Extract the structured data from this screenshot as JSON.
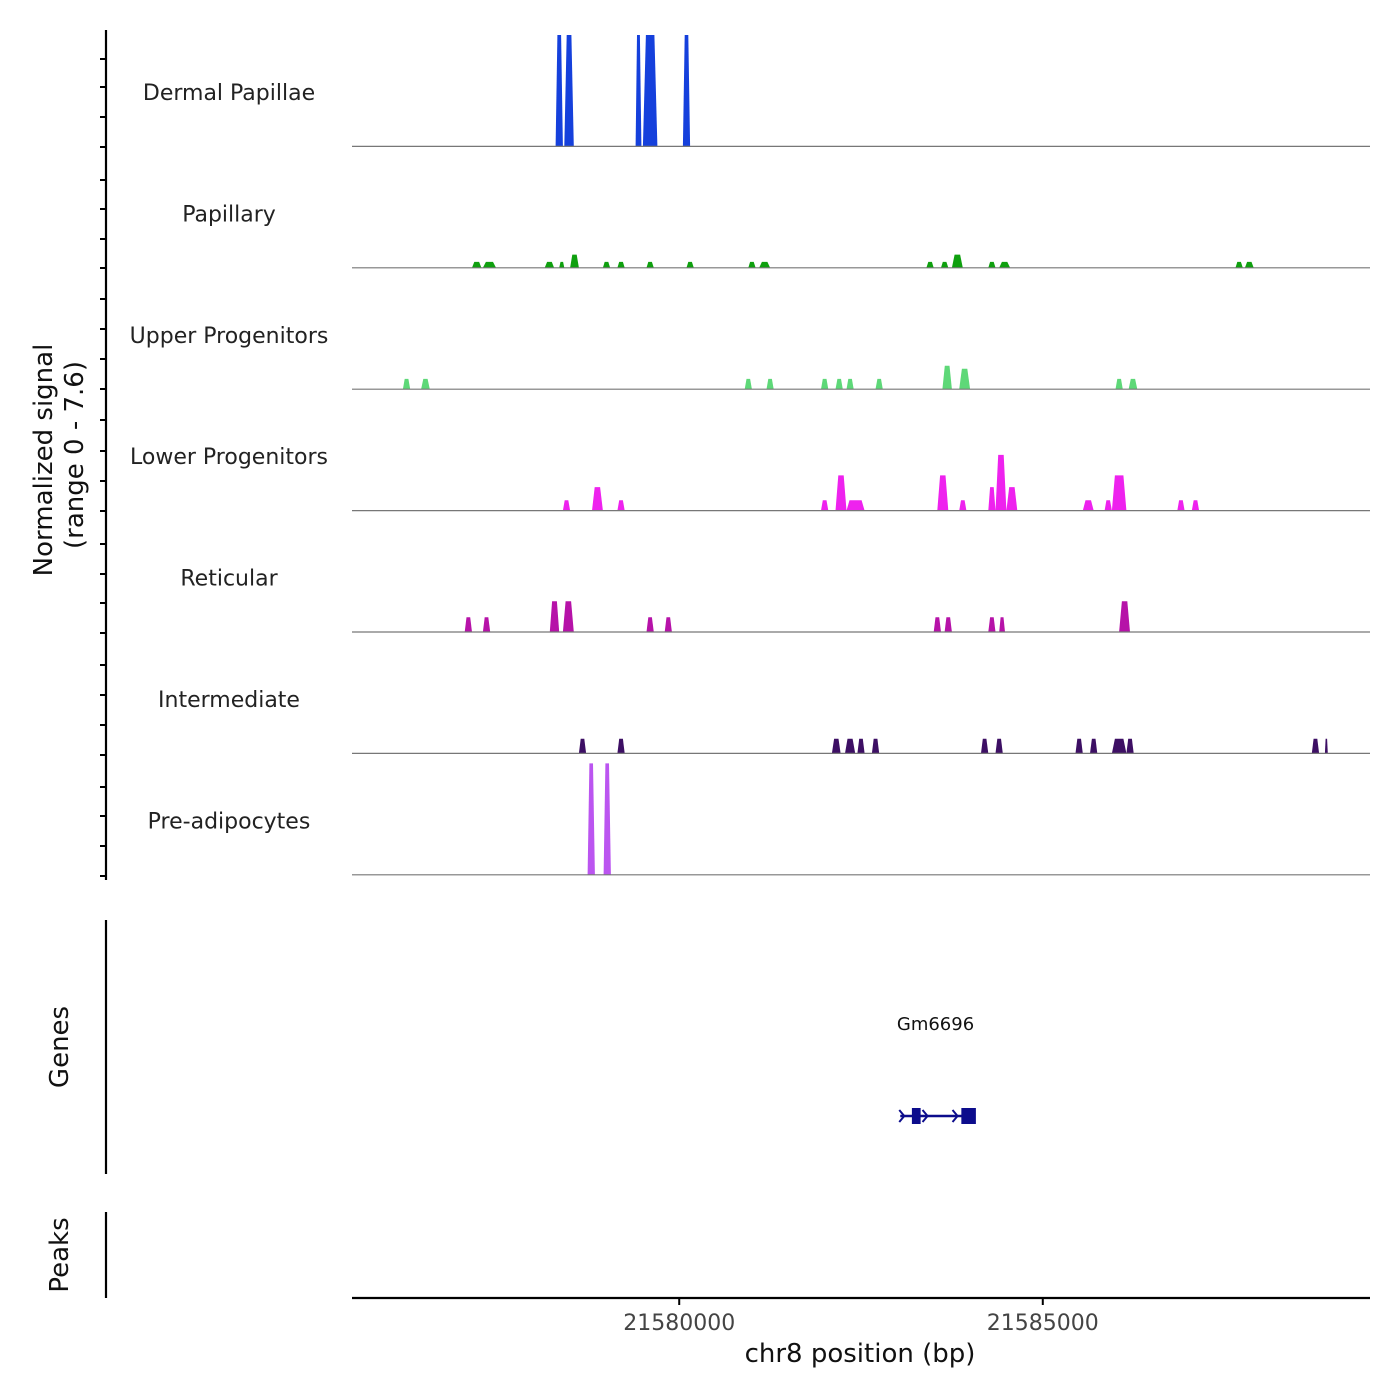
{
  "chart_data": {
    "type": "area",
    "title": "",
    "ylabel": "Normalized signal",
    "ylabel_range": "(range 0 - 7.6)",
    "ylim": [
      0,
      7.6
    ],
    "xlabel": "chr8 position (bp)",
    "xlim": [
      21575500,
      21589500
    ],
    "xticks": [
      21580000,
      21585000
    ],
    "xtick_labels": [
      "21580000",
      "21585000"
    ],
    "tracks": [
      {
        "name": "Dermal Papillae",
        "color": "#1540dc",
        "peaks": [
          {
            "start": 21578300,
            "end": 21578400,
            "height": 7.6
          },
          {
            "start": 21578420,
            "end": 21578550,
            "height": 7.6
          },
          {
            "start": 21579400,
            "end": 21579480,
            "height": 7.6
          },
          {
            "start": 21579500,
            "end": 21579700,
            "height": 7.6
          },
          {
            "start": 21580050,
            "end": 21580150,
            "height": 7.6
          }
        ]
      },
      {
        "name": "Papillary",
        "color": "#0fa00f",
        "peaks": [
          {
            "start": 21577150,
            "end": 21577280,
            "height": 0.4
          },
          {
            "start": 21577300,
            "end": 21577480,
            "height": 0.4
          },
          {
            "start": 21578150,
            "end": 21578280,
            "height": 0.4
          },
          {
            "start": 21578350,
            "end": 21578420,
            "height": 0.4
          },
          {
            "start": 21578500,
            "end": 21578620,
            "height": 0.9
          },
          {
            "start": 21578950,
            "end": 21579050,
            "height": 0.4
          },
          {
            "start": 21579150,
            "end": 21579250,
            "height": 0.4
          },
          {
            "start": 21579550,
            "end": 21579650,
            "height": 0.4
          },
          {
            "start": 21580100,
            "end": 21580200,
            "height": 0.4
          },
          {
            "start": 21580950,
            "end": 21581050,
            "height": 0.4
          },
          {
            "start": 21581100,
            "end": 21581250,
            "height": 0.4
          },
          {
            "start": 21583400,
            "end": 21583500,
            "height": 0.4
          },
          {
            "start": 21583600,
            "end": 21583700,
            "height": 0.4
          },
          {
            "start": 21583750,
            "end": 21583900,
            "height": 0.9
          },
          {
            "start": 21584250,
            "end": 21584350,
            "height": 0.4
          },
          {
            "start": 21584400,
            "end": 21584550,
            "height": 0.4
          },
          {
            "start": 21587650,
            "end": 21587750,
            "height": 0.4
          },
          {
            "start": 21587780,
            "end": 21587900,
            "height": 0.4
          }
        ]
      },
      {
        "name": "Upper Progenitors",
        "color": "#5ed878",
        "peaks": [
          {
            "start": 21576200,
            "end": 21576300,
            "height": 0.7
          },
          {
            "start": 21576450,
            "end": 21576570,
            "height": 0.7
          },
          {
            "start": 21580900,
            "end": 21581000,
            "height": 0.7
          },
          {
            "start": 21581200,
            "end": 21581300,
            "height": 0.7
          },
          {
            "start": 21581950,
            "end": 21582050,
            "height": 0.7
          },
          {
            "start": 21582150,
            "end": 21582250,
            "height": 0.7
          },
          {
            "start": 21582300,
            "end": 21582400,
            "height": 0.7
          },
          {
            "start": 21582700,
            "end": 21582800,
            "height": 0.7
          },
          {
            "start": 21583620,
            "end": 21583750,
            "height": 1.6
          },
          {
            "start": 21583850,
            "end": 21584000,
            "height": 1.4
          },
          {
            "start": 21586000,
            "end": 21586100,
            "height": 0.7
          },
          {
            "start": 21586180,
            "end": 21586300,
            "height": 0.7
          }
        ]
      },
      {
        "name": "Lower Progenitors",
        "color": "#ee22ee",
        "peaks": [
          {
            "start": 21578400,
            "end": 21578500,
            "height": 0.7
          },
          {
            "start": 21578800,
            "end": 21578950,
            "height": 1.6
          },
          {
            "start": 21579150,
            "end": 21579250,
            "height": 0.7
          },
          {
            "start": 21581950,
            "end": 21582050,
            "height": 0.7
          },
          {
            "start": 21582150,
            "end": 21582300,
            "height": 2.4
          },
          {
            "start": 21582300,
            "end": 21582550,
            "height": 0.7
          },
          {
            "start": 21583550,
            "end": 21583700,
            "height": 2.4
          },
          {
            "start": 21583850,
            "end": 21583950,
            "height": 0.7
          },
          {
            "start": 21584250,
            "end": 21584350,
            "height": 1.6
          },
          {
            "start": 21584350,
            "end": 21584500,
            "height": 3.8
          },
          {
            "start": 21584500,
            "end": 21584650,
            "height": 1.6
          },
          {
            "start": 21585550,
            "end": 21585700,
            "height": 0.7
          },
          {
            "start": 21585850,
            "end": 21585950,
            "height": 0.7
          },
          {
            "start": 21585950,
            "end": 21586150,
            "height": 2.4
          },
          {
            "start": 21586850,
            "end": 21586950,
            "height": 0.7
          },
          {
            "start": 21587050,
            "end": 21587150,
            "height": 0.7
          }
        ]
      },
      {
        "name": "Reticular",
        "color": "#b612a8",
        "peaks": [
          {
            "start": 21577050,
            "end": 21577150,
            "height": 1.0
          },
          {
            "start": 21577300,
            "end": 21577400,
            "height": 1.0
          },
          {
            "start": 21578220,
            "end": 21578350,
            "height": 2.1
          },
          {
            "start": 21578400,
            "end": 21578550,
            "height": 2.1
          },
          {
            "start": 21579550,
            "end": 21579650,
            "height": 1.0
          },
          {
            "start": 21579800,
            "end": 21579900,
            "height": 1.0
          },
          {
            "start": 21583500,
            "end": 21583600,
            "height": 1.0
          },
          {
            "start": 21583650,
            "end": 21583750,
            "height": 1.0
          },
          {
            "start": 21584250,
            "end": 21584350,
            "height": 1.0
          },
          {
            "start": 21584400,
            "end": 21584480,
            "height": 1.0
          },
          {
            "start": 21586050,
            "end": 21586200,
            "height": 2.1
          }
        ]
      },
      {
        "name": "Intermediate",
        "color": "#3d0f64",
        "peaks": [
          {
            "start": 21578620,
            "end": 21578720,
            "height": 1.0
          },
          {
            "start": 21579150,
            "end": 21579250,
            "height": 1.0
          },
          {
            "start": 21582100,
            "end": 21582220,
            "height": 1.0
          },
          {
            "start": 21582280,
            "end": 21582420,
            "height": 1.0
          },
          {
            "start": 21582450,
            "end": 21582550,
            "height": 1.0
          },
          {
            "start": 21582650,
            "end": 21582750,
            "height": 1.0
          },
          {
            "start": 21584150,
            "end": 21584250,
            "height": 1.0
          },
          {
            "start": 21584350,
            "end": 21584450,
            "height": 1.0
          },
          {
            "start": 21585450,
            "end": 21585550,
            "height": 1.0
          },
          {
            "start": 21585650,
            "end": 21585750,
            "height": 1.0
          },
          {
            "start": 21585950,
            "end": 21586150,
            "height": 1.0
          },
          {
            "start": 21586150,
            "end": 21586250,
            "height": 1.0
          },
          {
            "start": 21588700,
            "end": 21588800,
            "height": 1.0
          },
          {
            "start": 21588880,
            "end": 21588920,
            "height": 1.0
          }
        ]
      },
      {
        "name": "Pre-adipocytes",
        "color": "#bb55f0",
        "peaks": [
          {
            "start": 21578740,
            "end": 21578840,
            "height": 7.6
          },
          {
            "start": 21578960,
            "end": 21579060,
            "height": 7.6
          }
        ]
      }
    ],
    "genes_label": "Genes",
    "genes": [
      {
        "name": "Gm6696",
        "start": 21583150,
        "end": 21583900,
        "strand": "+",
        "color": "#0c0c8c",
        "exons": [
          [
            21583200,
            21583320
          ],
          [
            21583880,
            21584080
          ]
        ]
      }
    ],
    "peaks_label": "Peaks",
    "peaks_track": []
  }
}
